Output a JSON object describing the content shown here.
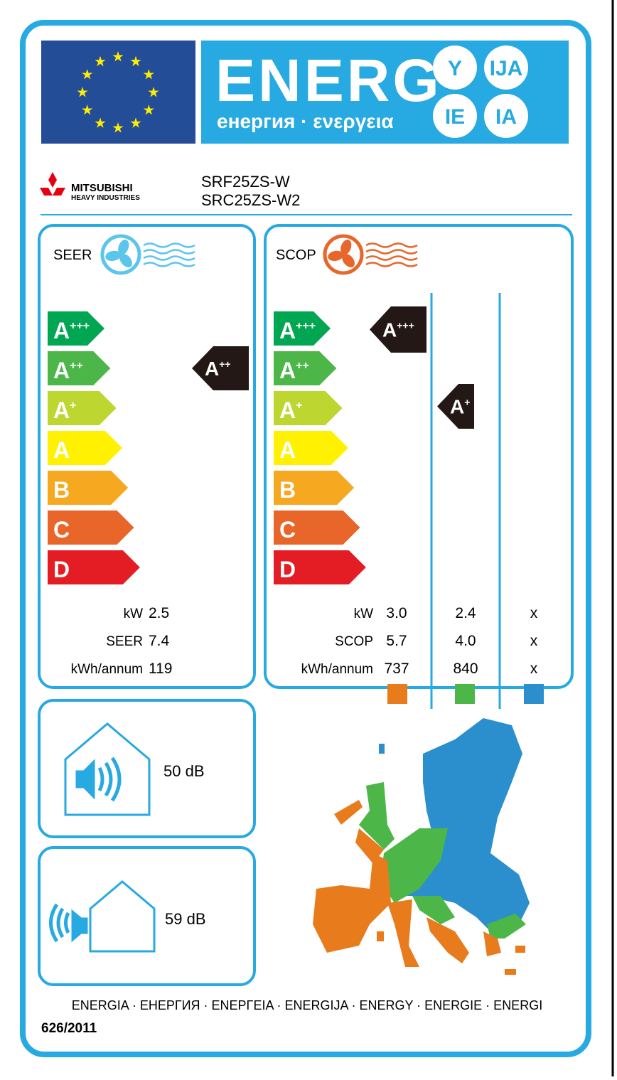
{
  "header": {
    "title": "ENERG",
    "subtitle": "енергия · ενεργεια",
    "suffixes": [
      "Y",
      "IJA",
      "IE",
      "IA"
    ]
  },
  "supplier": {
    "name": "MITSUBISHI",
    "division": "HEAVY INDUSTRIES",
    "models": [
      "SRF25ZS-W",
      "SRC25ZS-W2"
    ]
  },
  "classes": [
    {
      "letter": "A",
      "sup": "+++",
      "color": "#00a651"
    },
    {
      "letter": "A",
      "sup": "++",
      "color": "#4cb748"
    },
    {
      "letter": "A",
      "sup": "+",
      "color": "#bed630"
    },
    {
      "letter": "A",
      "color": "#fff100"
    },
    {
      "letter": "B",
      "color": "#f6a821"
    },
    {
      "letter": "C",
      "color": "#e8662a"
    },
    {
      "letter": "D",
      "color": "#e31d23"
    }
  ],
  "cooling": {
    "label": "SEER",
    "rating": {
      "letter": "A",
      "sup": "++"
    },
    "rows": [
      {
        "label": "kW",
        "value": "2.5"
      },
      {
        "label": "SEER",
        "value": "7.4"
      },
      {
        "label": "kWh/annum",
        "value": "119"
      }
    ]
  },
  "heating": {
    "label": "SCOP",
    "ratings": [
      {
        "letter": "A",
        "sup": "+++"
      },
      {
        "letter": "A",
        "sup": "+"
      }
    ],
    "rows": [
      {
        "label": "kW",
        "values": [
          "3.0",
          "2.4",
          "x"
        ]
      },
      {
        "label": "SCOP",
        "values": [
          "5.7",
          "4.0",
          "x"
        ]
      },
      {
        "label": "kWh/annum",
        "values": [
          "737",
          "840",
          "x"
        ]
      }
    ],
    "zone_colors": [
      "#e87b1c",
      "#4cb748",
      "#2a8fcc"
    ]
  },
  "noise": {
    "indoor": "50 dB",
    "outdoor": "59 dB"
  },
  "footer": {
    "languages": "ENERGIA · ЕНЕРГИЯ · ΕΝΕΡΓΕΙΑ · ENERGIJA · ENERGY · ENERGIE · ENERGI",
    "regulation": "626/2011"
  }
}
